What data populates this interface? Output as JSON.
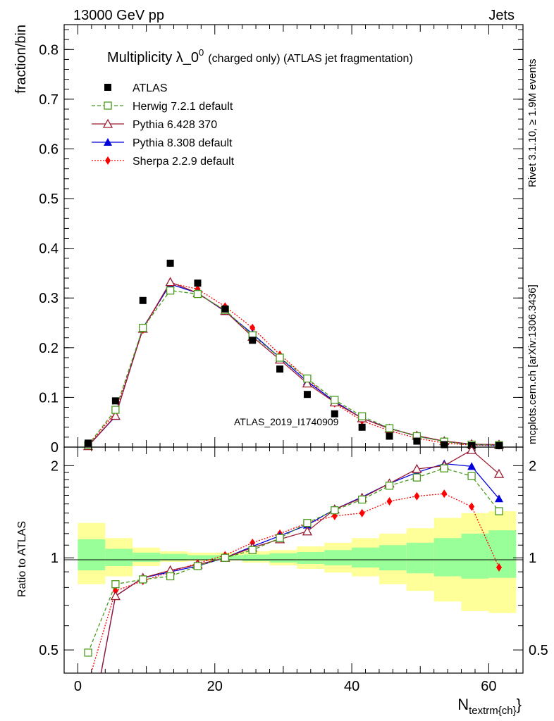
{
  "header": {
    "left": "13000 GeV pp",
    "right": "Jets",
    "title_main": "Multiplicity λ_0",
    "title_sup": "0",
    "title_tail": "(charged only) (ATLAS jet fragmentation)",
    "side_rivet": "Rivet 3.1.10, ≥ 1.9M events",
    "side_mcplots": "mcplots.cern.ch [arXiv:1306.3436]",
    "watermark": "ATLAS_2019_I1740909"
  },
  "legend": [
    {
      "label": "ATLAS",
      "color": "#000000",
      "marker": "square-filled",
      "line": "none"
    },
    {
      "label": "Herwig 7.2.1 default",
      "color": "#4a9a1e",
      "marker": "square-open",
      "line": "dashed"
    },
    {
      "label": "Pythia 6.428 370",
      "color": "#9b1b30",
      "marker": "triangle-open",
      "line": "solid"
    },
    {
      "label": "Pythia 8.308 default",
      "color": "#0000dd",
      "marker": "triangle-filled",
      "line": "solid"
    },
    {
      "label": "Sherpa 2.2.9 default",
      "color": "#ff0000",
      "marker": "diamond-filled",
      "line": "dotted"
    }
  ],
  "chart_data": [
    {
      "type": "scatter",
      "panel": "main",
      "ylabel": "fraction/bin",
      "xlim": [
        -2,
        65
      ],
      "ylim": [
        0,
        0.85
      ],
      "yticks": [
        0,
        0.1,
        0.2,
        0.3,
        0.4,
        0.5,
        0.6,
        0.7,
        0.8
      ],
      "ytick_labels": [
        "0",
        "0.1",
        "0.2",
        "0.3",
        "0.4",
        "0.5",
        "0.6",
        "0.7",
        "0.8"
      ],
      "x": [
        1.5,
        5.5,
        9.5,
        13.5,
        17.5,
        21.5,
        25.5,
        29.5,
        33.5,
        37.5,
        41.5,
        45.5,
        49.5,
        53.5,
        57.5,
        61.5
      ],
      "series": [
        {
          "name": "ATLAS",
          "values": [
            0.008,
            0.093,
            0.295,
            0.37,
            0.33,
            0.278,
            0.215,
            0.157,
            0.106,
            0.067,
            0.04,
            0.022,
            0.012,
            0.005,
            0.003,
            0.003
          ]
        },
        {
          "name": "Herwig 7.2.1 default",
          "values": [
            0.004,
            0.075,
            0.24,
            0.315,
            0.308,
            0.276,
            0.225,
            0.18,
            0.138,
            0.095,
            0.062,
            0.038,
            0.022,
            0.011,
            0.005,
            0.004
          ]
        },
        {
          "name": "Pythia 6.428 370",
          "values": [
            0.002,
            0.063,
            0.238,
            0.332,
            0.31,
            0.274,
            0.222,
            0.176,
            0.128,
            0.09,
            0.058,
            0.037,
            0.023,
            0.012,
            0.006,
            0.005
          ]
        },
        {
          "name": "Pythia 8.308 default",
          "values": [
            0.002,
            0.062,
            0.24,
            0.328,
            0.31,
            0.273,
            0.228,
            0.18,
            0.132,
            0.092,
            0.058,
            0.038,
            0.022,
            0.012,
            0.005,
            0.004
          ]
        },
        {
          "name": "Sherpa 2.2.9 default",
          "values": [
            0.003,
            0.07,
            0.236,
            0.33,
            0.318,
            0.283,
            0.24,
            0.186,
            0.138,
            0.088,
            0.053,
            0.033,
            0.018,
            0.008,
            0.004,
            0.003
          ]
        }
      ]
    },
    {
      "type": "line",
      "panel": "ratio",
      "ylabel": "Ratio to ATLAS",
      "xlabel": "N",
      "xlabel_sub": "textrm{ch}",
      "xlim": [
        -2,
        65
      ],
      "ylim": [
        0.42,
        2.3
      ],
      "yscale": "log",
      "yticks": [
        0.5,
        1,
        2
      ],
      "ytick_labels": [
        "0.5",
        "1",
        "2"
      ],
      "xticks": [
        0,
        20,
        40,
        60
      ],
      "xtick_labels": [
        "0",
        "20",
        "40",
        "60"
      ],
      "x": [
        1.5,
        5.5,
        9.5,
        13.5,
        17.5,
        21.5,
        25.5,
        29.5,
        33.5,
        37.5,
        41.5,
        45.5,
        49.5,
        53.5,
        57.5,
        61.5
      ],
      "bands": {
        "bin_edges": [
          0,
          4,
          8,
          12,
          16,
          20,
          24,
          28,
          32,
          36,
          40,
          44,
          48,
          52,
          56,
          60,
          64
        ],
        "inner": [
          [
            0.91,
            1.15
          ],
          [
            0.94,
            1.07
          ],
          [
            0.97,
            1.04
          ],
          [
            0.98,
            1.03
          ],
          [
            0.985,
            1.02
          ],
          [
            0.985,
            1.02
          ],
          [
            0.975,
            1.025
          ],
          [
            0.965,
            1.035
          ],
          [
            0.955,
            1.045
          ],
          [
            0.945,
            1.06
          ],
          [
            0.93,
            1.08
          ],
          [
            0.91,
            1.1
          ],
          [
            0.89,
            1.12
          ],
          [
            0.87,
            1.16
          ],
          [
            0.855,
            1.2
          ],
          [
            0.86,
            1.23
          ]
        ],
        "outer": [
          [
            0.82,
            1.3
          ],
          [
            0.87,
            1.16
          ],
          [
            0.94,
            1.08
          ],
          [
            0.97,
            1.05
          ],
          [
            0.975,
            1.04
          ],
          [
            0.98,
            1.04
          ],
          [
            0.965,
            1.05
          ],
          [
            0.945,
            1.06
          ],
          [
            0.92,
            1.09
          ],
          [
            0.895,
            1.12
          ],
          [
            0.87,
            1.16
          ],
          [
            0.82,
            1.2
          ],
          [
            0.78,
            1.25
          ],
          [
            0.72,
            1.35
          ],
          [
            0.67,
            1.4
          ],
          [
            0.66,
            1.42
          ]
        ]
      },
      "series": [
        {
          "name": "Herwig 7.2.1 default",
          "values": [
            0.49,
            0.82,
            0.85,
            0.87,
            0.94,
            1.0,
            1.06,
            1.16,
            1.3,
            1.43,
            1.55,
            1.72,
            1.83,
            1.96,
            1.85,
            1.42
          ]
        },
        {
          "name": "Pythia 6.428 370",
          "values": [
            0.25,
            0.75,
            0.86,
            0.91,
            0.95,
            1.0,
            1.08,
            1.15,
            1.22,
            1.44,
            1.57,
            1.75,
            1.95,
            2.0,
            2.25,
            1.88
          ]
        },
        {
          "name": "Pythia 8.308 default",
          "values": [
            0.25,
            0.75,
            0.86,
            0.9,
            0.94,
            1.0,
            1.09,
            1.18,
            1.28,
            1.44,
            1.58,
            1.75,
            1.9,
            2.03,
            1.99,
            1.56
          ]
        },
        {
          "name": "Sherpa 2.2.9 default",
          "values": [
            0.39,
            0.78,
            0.84,
            0.9,
            0.96,
            1.02,
            1.12,
            1.2,
            1.3,
            1.37,
            1.4,
            1.53,
            1.59,
            1.62,
            1.47,
            0.93
          ]
        }
      ]
    }
  ]
}
